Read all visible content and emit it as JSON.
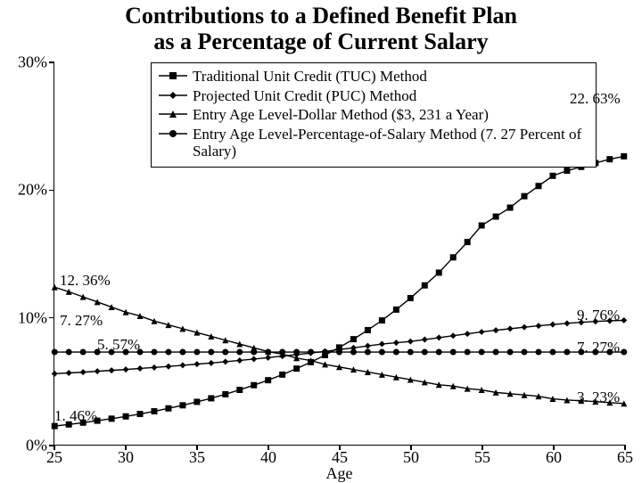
{
  "title_line1": "Contributions to a Defined Benefit Plan",
  "title_line2": "as a Percentage of Current Salary",
  "title_fontsize": 26,
  "x_axis": {
    "label": "Age",
    "min": 25,
    "max": 65,
    "ticks": [
      25,
      30,
      35,
      40,
      45,
      50,
      55,
      60,
      65
    ]
  },
  "y_axis": {
    "min": 0,
    "max": 30,
    "ticks": [
      0,
      10,
      20,
      30
    ],
    "tick_labels": [
      "0%",
      "10%",
      "20%",
      "30%"
    ]
  },
  "colors": {
    "line": "#000000",
    "background": "#ffffff",
    "border": "#000000"
  },
  "line_width": 1.4,
  "marker_size": 5,
  "series": [
    {
      "name": "Traditional Unit Credit (TUC) Method",
      "marker": "square",
      "x": [
        25,
        26,
        27,
        28,
        29,
        30,
        31,
        32,
        33,
        34,
        35,
        36,
        37,
        38,
        39,
        40,
        41,
        42,
        43,
        44,
        45,
        46,
        47,
        48,
        49,
        50,
        51,
        52,
        53,
        54,
        55,
        56,
        57,
        58,
        59,
        60,
        61,
        62,
        63,
        64,
        65
      ],
      "y": [
        1.46,
        1.59,
        1.73,
        1.88,
        2.04,
        2.22,
        2.41,
        2.62,
        2.85,
        3.09,
        3.36,
        3.64,
        3.96,
        4.3,
        4.67,
        5.06,
        5.5,
        5.97,
        6.48,
        7.03,
        7.63,
        8.28,
        8.99,
        9.75,
        10.6,
        11.5,
        12.5,
        13.5,
        14.7,
        15.9,
        17.2,
        17.9,
        18.6,
        19.5,
        20.3,
        21.1,
        21.5,
        21.8,
        22.1,
        22.4,
        22.63
      ],
      "end_label": "22. 63%",
      "start_label": "1. 46%"
    },
    {
      "name": "Projected Unit Credit (PUC) Method",
      "marker": "diamond",
      "x": [
        25,
        26,
        27,
        28,
        29,
        30,
        31,
        32,
        33,
        34,
        35,
        36,
        37,
        38,
        39,
        40,
        41,
        42,
        43,
        44,
        45,
        46,
        47,
        48,
        49,
        50,
        51,
        52,
        53,
        54,
        55,
        56,
        57,
        58,
        59,
        60,
        61,
        62,
        63,
        64,
        65
      ],
      "y": [
        5.57,
        5.63,
        5.69,
        5.76,
        5.83,
        5.9,
        5.98,
        6.06,
        6.14,
        6.23,
        6.32,
        6.41,
        6.51,
        6.61,
        6.72,
        6.83,
        6.95,
        7.07,
        7.19,
        7.32,
        7.46,
        7.6,
        7.75,
        7.9,
        8.0,
        8.1,
        8.25,
        8.4,
        8.55,
        8.7,
        8.85,
        8.98,
        9.1,
        9.22,
        9.33,
        9.43,
        9.52,
        9.6,
        9.67,
        9.72,
        9.76
      ],
      "end_label": "9. 76%",
      "start_label": "5. 57%"
    },
    {
      "name": "Entry Age Level-Dollar Method ($3, 231 a Year)",
      "marker": "triangle",
      "x": [
        25,
        26,
        27,
        28,
        29,
        30,
        31,
        32,
        33,
        34,
        35,
        36,
        37,
        38,
        39,
        40,
        41,
        42,
        43,
        44,
        45,
        46,
        47,
        48,
        49,
        50,
        51,
        52,
        53,
        54,
        55,
        56,
        57,
        58,
        59,
        60,
        61,
        62,
        63,
        64,
        65
      ],
      "y": [
        12.36,
        12.0,
        11.6,
        11.2,
        10.8,
        10.4,
        10.1,
        9.7,
        9.4,
        9.1,
        8.8,
        8.5,
        8.2,
        7.9,
        7.6,
        7.3,
        7.1,
        6.8,
        6.6,
        6.3,
        6.1,
        5.9,
        5.7,
        5.5,
        5.3,
        5.1,
        4.9,
        4.7,
        4.6,
        4.4,
        4.3,
        4.1,
        4.0,
        3.9,
        3.8,
        3.6,
        3.5,
        3.45,
        3.38,
        3.3,
        3.23
      ],
      "end_label": "3. 23%",
      "start_label": "12. 36%"
    },
    {
      "name": "Entry Age Level-Percentage-of-Salary Method (7. 27 Percent of Salary)",
      "marker": "circle",
      "x": [
        25,
        26,
        27,
        28,
        29,
        30,
        31,
        32,
        33,
        34,
        35,
        36,
        37,
        38,
        39,
        40,
        41,
        42,
        43,
        44,
        45,
        46,
        47,
        48,
        49,
        50,
        51,
        52,
        53,
        54,
        55,
        56,
        57,
        58,
        59,
        60,
        61,
        62,
        63,
        64,
        65
      ],
      "y": [
        7.27,
        7.27,
        7.27,
        7.27,
        7.27,
        7.27,
        7.27,
        7.27,
        7.27,
        7.27,
        7.27,
        7.27,
        7.27,
        7.27,
        7.27,
        7.27,
        7.27,
        7.27,
        7.27,
        7.27,
        7.27,
        7.27,
        7.27,
        7.27,
        7.27,
        7.27,
        7.27,
        7.27,
        7.27,
        7.27,
        7.27,
        7.27,
        7.27,
        7.27,
        7.27,
        7.27,
        7.27,
        7.27,
        7.27,
        7.27,
        7.27
      ],
      "end_label": "7. 27%",
      "start_label": "7. 27%"
    }
  ]
}
